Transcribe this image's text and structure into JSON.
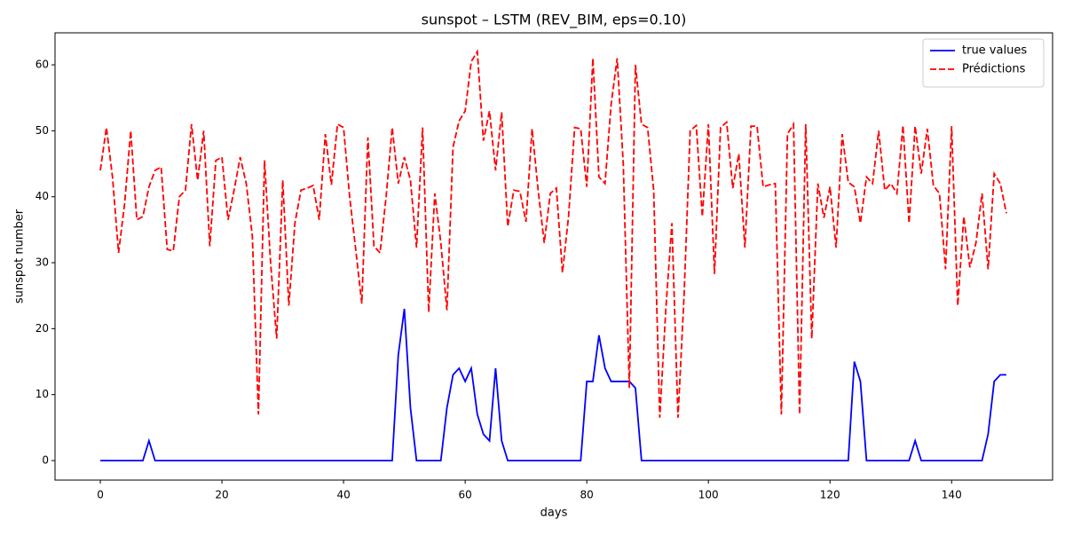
{
  "chart_data": {
    "type": "line",
    "title": "sunspot – LSTM (REV_BIM, eps=0.10)",
    "xlabel": "days",
    "ylabel": "sunspot number",
    "x": [
      0,
      1,
      2,
      3,
      4,
      5,
      6,
      7,
      8,
      9,
      10,
      11,
      12,
      13,
      14,
      15,
      16,
      17,
      18,
      19,
      20,
      21,
      22,
      23,
      24,
      25,
      26,
      27,
      28,
      29,
      30,
      31,
      32,
      33,
      34,
      35,
      36,
      37,
      38,
      39,
      40,
      41,
      42,
      43,
      44,
      45,
      46,
      47,
      48,
      49,
      50,
      51,
      52,
      53,
      54,
      55,
      56,
      57,
      58,
      59,
      60,
      61,
      62,
      63,
      64,
      65,
      66,
      67,
      68,
      69,
      70,
      71,
      72,
      73,
      74,
      75,
      76,
      77,
      78,
      79,
      80,
      81,
      82,
      83,
      84,
      85,
      86,
      87,
      88,
      89,
      90,
      91,
      92,
      93,
      94,
      95,
      96,
      97,
      98,
      99,
      100,
      101,
      102,
      103,
      104,
      105,
      106,
      107,
      108,
      109,
      110,
      111,
      112,
      113,
      114,
      115,
      116,
      117,
      118,
      119,
      120,
      121,
      122,
      123,
      124,
      125,
      126,
      127,
      128,
      129,
      130,
      131,
      132,
      133,
      134,
      135,
      136,
      137,
      138,
      139,
      140,
      141,
      142,
      143,
      144,
      145,
      146,
      147,
      148,
      149
    ],
    "series": [
      {
        "name": "true values",
        "color": "#0000ff",
        "dash": false,
        "values": [
          0,
          0,
          0,
          0,
          0,
          0,
          0,
          0,
          3,
          0,
          0,
          0,
          0,
          0,
          0,
          0,
          0,
          0,
          0,
          0,
          0,
          0,
          0,
          0,
          0,
          0,
          0,
          0,
          0,
          0,
          0,
          0,
          0,
          0,
          0,
          0,
          0,
          0,
          0,
          0,
          0,
          0,
          0,
          0,
          0,
          0,
          0,
          0,
          0,
          16,
          23,
          8,
          0,
          0,
          0,
          0,
          0,
          8,
          13,
          14,
          12,
          14,
          7,
          4,
          3,
          14,
          3,
          0,
          0,
          0,
          0,
          0,
          0,
          0,
          0,
          0,
          0,
          0,
          0,
          0,
          12,
          12,
          19,
          14,
          12,
          12,
          12,
          12,
          11,
          0,
          0,
          0,
          0,
          0,
          0,
          0,
          0,
          0,
          0,
          0,
          0,
          0,
          0,
          0,
          0,
          0,
          0,
          0,
          0,
          0,
          0,
          0,
          0,
          0,
          0,
          0,
          0,
          0,
          0,
          0,
          0,
          0,
          0,
          0,
          15,
          12,
          0,
          0,
          0,
          0,
          0,
          0,
          0,
          0,
          3,
          0,
          0,
          0,
          0,
          0,
          0,
          0,
          0,
          0,
          0,
          0,
          4,
          12,
          13,
          13
        ]
      },
      {
        "name": "Prédictions",
        "color": "#ff0000",
        "dash": true,
        "values": [
          44,
          50.5,
          43,
          31.5,
          39,
          50,
          36.5,
          37,
          41.5,
          44,
          44.5,
          32,
          31.8,
          40,
          41,
          51,
          42.5,
          50,
          32.5,
          45.5,
          46,
          36.5,
          41,
          46,
          42,
          34,
          7,
          45.5,
          30,
          18.5,
          42.5,
          23.5,
          36,
          41,
          41.3,
          41.7,
          36.5,
          49.5,
          41.8,
          51,
          50.5,
          40,
          32,
          23.8,
          49,
          32.5,
          31.5,
          40,
          50.5,
          42,
          46,
          42.5,
          32.3,
          50.5,
          22.5,
          40.5,
          33,
          22.8,
          47.5,
          51.5,
          53,
          60.5,
          62,
          48.5,
          53,
          44,
          52.8,
          35.5,
          41,
          40.8,
          36.2,
          50.3,
          41,
          33,
          40.5,
          41.3,
          28.5,
          37,
          50.5,
          50.3,
          41.5,
          61,
          43,
          42,
          54,
          61,
          45,
          11,
          60,
          51,
          50.5,
          41,
          6.5,
          23,
          36,
          6.5,
          25,
          50,
          50.8,
          37,
          51,
          28.3,
          50.5,
          51.3,
          41.3,
          46.5,
          32.3,
          50.7,
          50.7,
          41.5,
          41.8,
          42,
          7,
          49.5,
          51,
          7,
          51,
          18.5,
          42,
          36.8,
          41.5,
          32.3,
          49.5,
          42.2,
          41.5,
          36,
          43,
          42,
          50,
          41,
          42,
          40.5,
          50.8,
          36,
          50.7,
          43.5,
          50.3,
          41.7,
          40.5,
          29,
          50.7,
          23.5,
          37,
          29.3,
          33,
          40.5,
          29,
          43.5,
          42,
          37.5
        ]
      }
    ],
    "xlim": [
      -7.45,
      156.6
    ],
    "ylim": [
      -2.96,
      64.85
    ],
    "xticks": [
      0,
      20,
      40,
      60,
      80,
      100,
      120,
      140
    ],
    "yticks": [
      0,
      10,
      20,
      30,
      40,
      50,
      60
    ],
    "legend": "upper right"
  }
}
